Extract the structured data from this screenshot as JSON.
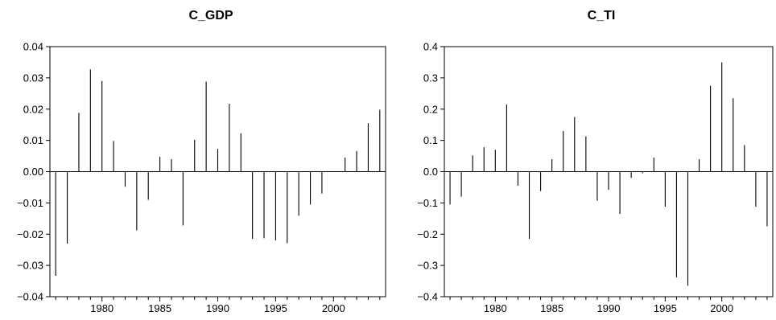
{
  "chart_data": [
    {
      "type": "bar",
      "title": "C_GDP",
      "xlabel": "",
      "ylabel": "",
      "ylim": [
        -0.04,
        0.04
      ],
      "xlim": [
        1975.5,
        2004.5
      ],
      "y_ticks": [
        0.04,
        0.03,
        0.02,
        0.01,
        0.0,
        -0.01,
        -0.02,
        -0.03,
        -0.04
      ],
      "y_tick_labels": [
        "0.04",
        "0.03",
        "0.02",
        "0.01",
        "0.00",
        "−0.01",
        "−0.02",
        "−0.03",
        "−0.04"
      ],
      "x_ticks": [
        1980,
        1985,
        1990,
        1995,
        2000
      ],
      "x_tick_labels": [
        "1980",
        "1985",
        "1990",
        "1995",
        "2000"
      ],
      "grid": false,
      "zero_line": true,
      "x": [
        1976,
        1977,
        1978,
        1979,
        1980,
        1981,
        1982,
        1983,
        1984,
        1985,
        1986,
        1987,
        1988,
        1989,
        1990,
        1991,
        1992,
        1993,
        1994,
        1995,
        1996,
        1997,
        1998,
        1999,
        2000,
        2001,
        2002,
        2003,
        2004
      ],
      "values": [
        -0.0333,
        -0.023,
        0.0188,
        0.0327,
        0.029,
        0.0098,
        -0.0048,
        -0.0188,
        -0.009,
        0.0047,
        0.004,
        -0.0172,
        0.0102,
        0.0288,
        0.0073,
        0.0217,
        0.0123,
        -0.0215,
        -0.0213,
        -0.022,
        -0.0229,
        -0.0141,
        -0.0105,
        -0.007,
        0.0,
        0.0045,
        0.0066,
        0.0155,
        0.0198
      ]
    },
    {
      "type": "bar",
      "title": "C_TI",
      "xlabel": "",
      "ylabel": "",
      "ylim": [
        -0.4,
        0.4
      ],
      "xlim": [
        1975.5,
        2004.5
      ],
      "y_ticks": [
        0.4,
        0.3,
        0.2,
        0.1,
        0.0,
        -0.1,
        -0.2,
        -0.3,
        -0.4
      ],
      "y_tick_labels": [
        "0.4",
        "0.3",
        "0.2",
        "0.1",
        "0.0",
        "−0.1",
        "−0.2",
        "−0.3",
        "−0.4"
      ],
      "x_ticks": [
        1980,
        1985,
        1990,
        1995,
        2000
      ],
      "x_tick_labels": [
        "1980",
        "1985",
        "1990",
        "1995",
        "2000"
      ],
      "grid": false,
      "zero_line": true,
      "x": [
        1976,
        1977,
        1978,
        1979,
        1980,
        1981,
        1982,
        1983,
        1984,
        1985,
        1986,
        1987,
        1988,
        1989,
        1990,
        1991,
        1992,
        1993,
        1994,
        1995,
        1996,
        1997,
        1998,
        1999,
        2000,
        2001,
        2002,
        2003,
        2004
      ],
      "values": [
        -0.105,
        -0.08,
        0.052,
        0.078,
        0.07,
        0.215,
        -0.045,
        -0.215,
        -0.062,
        0.04,
        0.13,
        0.175,
        0.113,
        -0.093,
        -0.058,
        -0.135,
        -0.02,
        -0.005,
        0.045,
        -0.112,
        -0.338,
        -0.365,
        0.04,
        0.275,
        0.35,
        0.235,
        0.085,
        -0.112,
        -0.175
      ]
    }
  ]
}
